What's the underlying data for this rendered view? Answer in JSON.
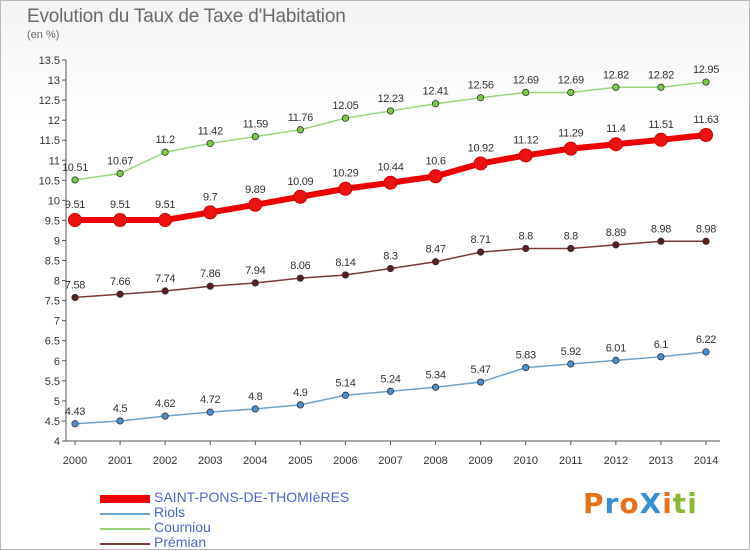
{
  "header": {
    "title": "Evolution du Taux de Taxe d'Habitation",
    "subtitle": "(en %)"
  },
  "logo": {
    "text": "ProXiti",
    "colors": [
      "#e8701a",
      "#3a8fd0",
      "#e8701a",
      "#3a8fd0",
      "#e8701a",
      "#8ab832",
      "#8ab832"
    ]
  },
  "chart_data": {
    "type": "line",
    "x": [
      2000,
      2001,
      2002,
      2003,
      2004,
      2005,
      2006,
      2007,
      2008,
      2009,
      2010,
      2011,
      2012,
      2013,
      2014
    ],
    "ylim": [
      4,
      13.5
    ],
    "yticks": [
      "4",
      "4.5",
      "5",
      "5.5",
      "6",
      "6.5",
      "7",
      "7.5",
      "8",
      "8.5",
      "9",
      "9.5",
      "10",
      "10.5",
      "11",
      "11.5",
      "12",
      "12.5",
      "13",
      "13.5"
    ],
    "grid": false,
    "legend_position": "bottom-left",
    "series": [
      {
        "name": "SAINT-PONS-DE-THOMIèRES",
        "color": "#ee0000",
        "marker_fill": "#ee1111",
        "emphasis": true,
        "values": [
          9.51,
          9.51,
          9.51,
          9.7,
          9.89,
          10.09,
          10.29,
          10.44,
          10.6,
          10.92,
          11.12,
          11.29,
          11.4,
          11.51,
          11.63
        ],
        "labels": [
          "9.51",
          "9.51",
          "9.51",
          "9.7",
          "9.89",
          "10.09",
          "10.29",
          "10.44",
          "10.6",
          "10.92",
          "11.12",
          "11.29",
          "11.4",
          "11.51",
          "11.63"
        ]
      },
      {
        "name": "Riols",
        "color": "#6ea3cb",
        "marker_fill": "#4a8fcf",
        "emphasis": false,
        "values": [
          4.43,
          4.5,
          4.62,
          4.72,
          4.8,
          4.9,
          5.14,
          5.24,
          5.34,
          5.47,
          5.83,
          5.92,
          6.01,
          6.1,
          6.22
        ],
        "labels": [
          "4.43",
          "4.5",
          "4.62",
          "4.72",
          "4.8",
          "4.9",
          "5.14",
          "5.24",
          "5.34",
          "5.47",
          "5.83",
          "5.92",
          "6.01",
          "6.1",
          "6.22"
        ]
      },
      {
        "name": "Courniou",
        "color": "#9ad47a",
        "marker_fill": "#77cc44",
        "emphasis": false,
        "values": [
          10.51,
          10.67,
          11.2,
          11.42,
          11.59,
          11.76,
          12.05,
          12.23,
          12.41,
          12.56,
          12.69,
          12.69,
          12.82,
          12.82,
          12.95
        ],
        "labels": [
          "10.51",
          "10.67",
          "11.2",
          "11.42",
          "11.59",
          "11.76",
          "12.05",
          "12.23",
          "12.41",
          "12.56",
          "12.69",
          "12.69",
          "12.82",
          "12.82",
          "12.95"
        ]
      },
      {
        "name": "Prémian",
        "color": "#7a3a3a",
        "marker_fill": "#5a1e1e",
        "emphasis": false,
        "values": [
          7.58,
          7.66,
          7.74,
          7.86,
          7.94,
          8.06,
          8.14,
          8.3,
          8.47,
          8.71,
          8.8,
          8.8,
          8.89,
          8.98,
          8.98
        ],
        "labels": [
          "7.58",
          "7.66",
          "7.74",
          "7.86",
          "7.94",
          "8.06",
          "8.14",
          "8.3",
          "8.47",
          "8.71",
          "8.8",
          "8.8",
          "8.89",
          "8.98",
          "8.98"
        ]
      }
    ]
  }
}
